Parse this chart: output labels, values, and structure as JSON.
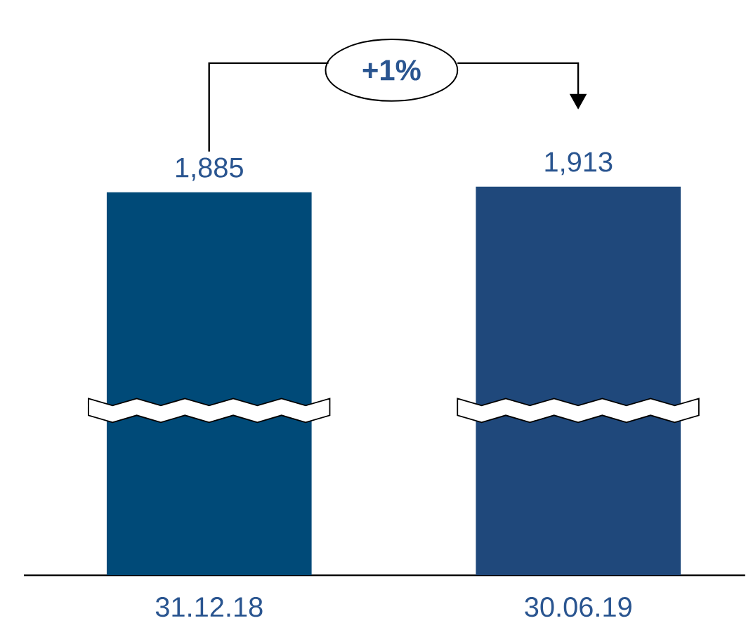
{
  "chart_data": {
    "type": "bar",
    "categories": [
      "31.12.18",
      "30.06.19"
    ],
    "values": [
      1885,
      1913
    ],
    "colors": [
      "#004a78",
      "#1f487b"
    ],
    "value_labels": [
      "1,885",
      "1,913"
    ],
    "tick_labels": "x",
    "annotations": [
      "+1%"
    ]
  }
}
